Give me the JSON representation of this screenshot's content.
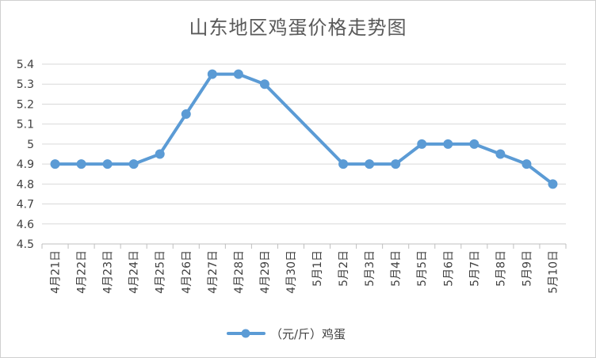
{
  "chart_data": {
    "type": "line",
    "title": "山东地区鸡蛋价格走势图",
    "categories": [
      "4月21日",
      "4月22日",
      "4月23日",
      "4月24日",
      "4月25日",
      "4月26日",
      "4月27日",
      "4月28日",
      "4月29日",
      "4月30日",
      "5月1日",
      "5月2日",
      "5月3日",
      "5月4日",
      "5月5日",
      "5月6日",
      "5月7日",
      "5月8日",
      "5月9日",
      "5月10日"
    ],
    "series": [
      {
        "name": "（元/斤）鸡蛋",
        "values": [
          4.9,
          4.9,
          4.9,
          4.9,
          4.95,
          5.15,
          5.35,
          5.35,
          5.3,
          null,
          null,
          4.9,
          4.9,
          4.9,
          5.0,
          5.0,
          5.0,
          4.95,
          4.9,
          4.8
        ],
        "color": "#5B9BD5"
      }
    ],
    "ylim": [
      4.5,
      5.4
    ],
    "yticks": [
      "4.5",
      "4.6",
      "4.7",
      "4.8",
      "4.9",
      "5",
      "5.1",
      "5.2",
      "5.3",
      "5.4"
    ],
    "grid": true,
    "legend": "bottom",
    "xlabel": "",
    "ylabel": ""
  }
}
